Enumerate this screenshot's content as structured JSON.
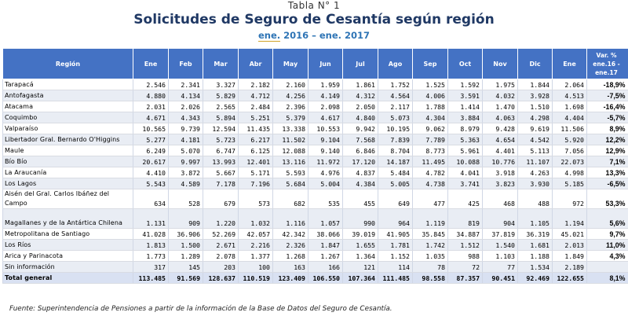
{
  "header": {
    "table_number": "Tabla N° 1",
    "title": "Solicitudes de Seguro de Cesantía según región",
    "period_prefix": "ene.",
    "period_rest": " 2016 – ene. 2017"
  },
  "table": {
    "columns": [
      "Región",
      "Ene",
      "Feb",
      "Mar",
      "Abr",
      "May",
      "Jun",
      "Jul",
      "Ago",
      "Sep",
      "Oct",
      "Nov",
      "Dic",
      "Ene",
      "Var. % ene.16 - ene.17"
    ],
    "rows": [
      {
        "region": "Tarapacá",
        "values": [
          "2.546",
          "2.341",
          "3.327",
          "2.182",
          "2.160",
          "1.959",
          "1.861",
          "1.752",
          "1.525",
          "1.592",
          "1.975",
          "1.844",
          "2.064"
        ],
        "var": "-18,9%"
      },
      {
        "region": "Antofagasta",
        "values": [
          "4.880",
          "4.134",
          "5.829",
          "4.712",
          "4.256",
          "4.149",
          "4.312",
          "4.564",
          "4.006",
          "3.591",
          "4.032",
          "3.928",
          "4.513"
        ],
        "var": "-7,5%"
      },
      {
        "region": "Atacama",
        "values": [
          "2.031",
          "2.026",
          "2.565",
          "2.484",
          "2.396",
          "2.098",
          "2.050",
          "2.117",
          "1.788",
          "1.414",
          "1.470",
          "1.510",
          "1.698"
        ],
        "var": "-16,4%"
      },
      {
        "region": "Coquimbo",
        "values": [
          "4.671",
          "4.343",
          "5.894",
          "5.251",
          "5.379",
          "4.617",
          "4.840",
          "5.073",
          "4.304",
          "3.884",
          "4.063",
          "4.298",
          "4.404"
        ],
        "var": "-5,7%"
      },
      {
        "region": "Valparaíso",
        "values": [
          "10.565",
          "9.739",
          "12.594",
          "11.435",
          "13.338",
          "10.553",
          "9.942",
          "10.195",
          "9.062",
          "8.979",
          "9.428",
          "9.619",
          "11.506"
        ],
        "var": "8,9%"
      },
      {
        "region": "Libertador Gral. Bernardo O'Higgins",
        "values": [
          "5.277",
          "4.181",
          "5.723",
          "6.217",
          "11.502",
          "9.104",
          "7.568",
          "7.839",
          "7.789",
          "5.363",
          "4.654",
          "4.542",
          "5.920"
        ],
        "var": "12,2%"
      },
      {
        "region": "Maule",
        "values": [
          "6.249",
          "5.070",
          "6.747",
          "6.125",
          "12.088",
          "9.140",
          "6.846",
          "8.704",
          "8.773",
          "5.961",
          "4.401",
          "5.113",
          "7.056"
        ],
        "var": "12,9%"
      },
      {
        "region": "Bío Bío",
        "values": [
          "20.617",
          "9.997",
          "13.993",
          "12.401",
          "13.116",
          "11.972",
          "17.120",
          "14.187",
          "11.495",
          "10.088",
          "10.776",
          "11.107",
          "22.073"
        ],
        "var": "7,1%"
      },
      {
        "region": "La Araucanía",
        "values": [
          "4.410",
          "3.872",
          "5.667",
          "5.171",
          "5.593",
          "4.976",
          "4.837",
          "5.484",
          "4.782",
          "4.041",
          "3.918",
          "4.263",
          "4.998"
        ],
        "var": "13,3%"
      },
      {
        "region": "Los Lagos",
        "values": [
          "5.543",
          "4.589",
          "7.178",
          "7.196",
          "5.684",
          "5.004",
          "4.384",
          "5.005",
          "4.738",
          "3.741",
          "3.823",
          "3.930",
          "5.185"
        ],
        "var": "-6,5%"
      },
      {
        "region": "Aisén del Gral. Carlos Ibáñez del Campo",
        "values": [
          "634",
          "528",
          "679",
          "573",
          "682",
          "535",
          "455",
          "649",
          "477",
          "425",
          "468",
          "488",
          "972"
        ],
        "var": "53,3%"
      },
      {
        "region": "Magallanes y de la Antártica Chilena",
        "values": [
          "1.131",
          "909",
          "1.220",
          "1.032",
          "1.116",
          "1.057",
          "990",
          "964",
          "1.119",
          "819",
          "904",
          "1.105",
          "1.194"
        ],
        "var": "5,6%"
      },
      {
        "region": "Metropolitana de Santiago",
        "values": [
          "41.028",
          "36.906",
          "52.269",
          "42.057",
          "42.342",
          "38.066",
          "39.019",
          "41.905",
          "35.845",
          "34.887",
          "37.819",
          "36.319",
          "45.021"
        ],
        "var": "9,7%"
      },
      {
        "region": "Los Ríos",
        "values": [
          "1.813",
          "1.500",
          "2.671",
          "2.216",
          "2.326",
          "1.847",
          "1.655",
          "1.781",
          "1.742",
          "1.512",
          "1.540",
          "1.681",
          "2.013"
        ],
        "var": "11,0%"
      },
      {
        "region": "Arica y Parinacota",
        "values": [
          "1.773",
          "1.289",
          "2.078",
          "1.377",
          "1.268",
          "1.267",
          "1.364",
          "1.152",
          "1.035",
          "988",
          "1.103",
          "1.188",
          "1.849"
        ],
        "var": "4,3%"
      },
      {
        "region": "Sin información",
        "values": [
          "317",
          "145",
          "203",
          "100",
          "163",
          "166",
          "121",
          "114",
          "78",
          "72",
          "77",
          "1.534",
          "2.189"
        ],
        "var": ""
      },
      {
        "region": "Total general",
        "values": [
          "113.485",
          "91.569",
          "128.637",
          "110.519",
          "123.409",
          "106.550",
          "107.364",
          "111.485",
          "98.558",
          "87.357",
          "90.451",
          "92.469",
          "122.655"
        ],
        "var": "8,1%"
      }
    ]
  },
  "source": "Fuente: Superintendencia de Pensiones a partir de la información de la Base de Datos del Seguro de Cesantía."
}
